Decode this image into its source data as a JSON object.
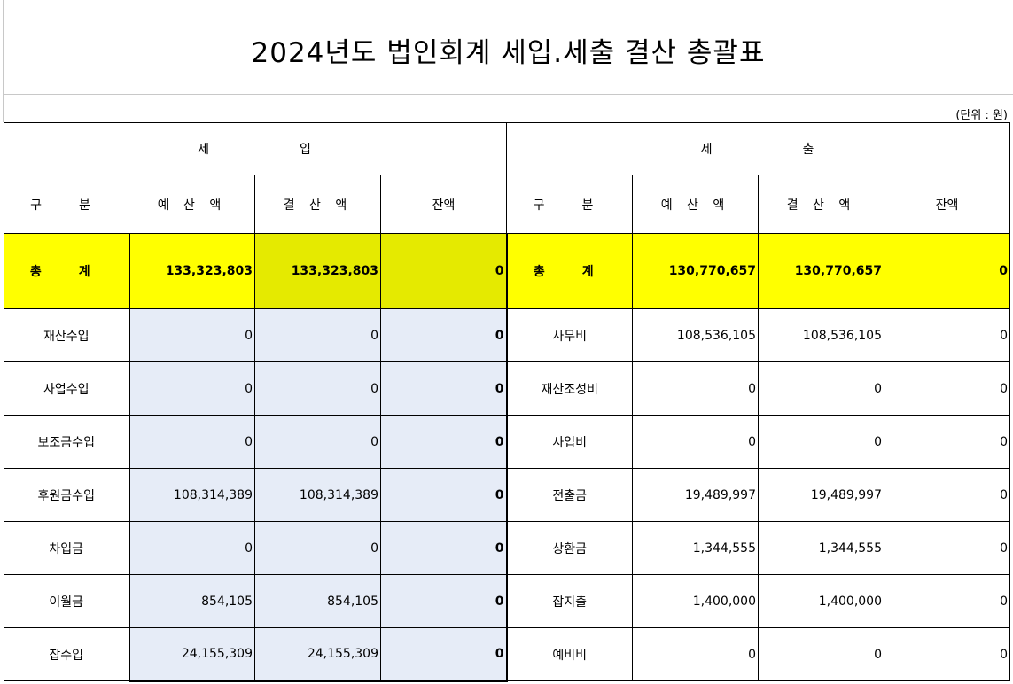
{
  "title": "2024년도 법인회계 세입.세출 결산 총괄표",
  "unit_note": "(단위 : 원)",
  "section_left_a": "세",
  "section_left_b": "입",
  "section_right_a": "세",
  "section_right_b": "출",
  "headers": {
    "category": "구　분",
    "budget": "예 산 액",
    "settled": "결 산 액",
    "balance": "잔액"
  },
  "total": {
    "label": "총　계",
    "rev_budget": "133,323,803",
    "rev_settled": "133,323,803",
    "rev_balance": "0",
    "exp_budget": "130,770,657",
    "exp_settled": "130,770,657",
    "exp_balance": "0"
  },
  "rows": [
    {
      "rev_name": "재산수입",
      "rev_budget": "0",
      "rev_settled": "0",
      "rev_balance": "0",
      "exp_name": "사무비",
      "exp_budget": "108,536,105",
      "exp_settled": "108,536,105",
      "exp_balance": "0"
    },
    {
      "rev_name": "사업수입",
      "rev_budget": "0",
      "rev_settled": "0",
      "rev_balance": "0",
      "exp_name": "재산조성비",
      "exp_budget": "0",
      "exp_settled": "0",
      "exp_balance": "0"
    },
    {
      "rev_name": "보조금수입",
      "rev_budget": "0",
      "rev_settled": "0",
      "rev_balance": "0",
      "exp_name": "사업비",
      "exp_budget": "0",
      "exp_settled": "0",
      "exp_balance": "0"
    },
    {
      "rev_name": "후원금수입",
      "rev_budget": "108,314,389",
      "rev_settled": "108,314,389",
      "rev_balance": "0",
      "exp_name": "전출금",
      "exp_budget": "19,489,997",
      "exp_settled": "19,489,997",
      "exp_balance": "0"
    },
    {
      "rev_name": "차입금",
      "rev_budget": "0",
      "rev_settled": "0",
      "rev_balance": "0",
      "exp_name": "상환금",
      "exp_budget": "1,344,555",
      "exp_settled": "1,344,555",
      "exp_balance": "0"
    },
    {
      "rev_name": "이월금",
      "rev_budget": "854,105",
      "rev_settled": "854,105",
      "rev_balance": "0",
      "exp_name": "잡지출",
      "exp_budget": "1,400,000",
      "exp_settled": "1,400,000",
      "exp_balance": "0"
    },
    {
      "rev_name": "잡수입",
      "rev_budget": "24,155,309",
      "rev_settled": "24,155,309",
      "rev_balance": "0",
      "exp_name": "예비비",
      "exp_budget": "0",
      "exp_settled": "0",
      "exp_balance": "0"
    }
  ],
  "colors": {
    "total_highlight": "#ffff00",
    "total_highlight_selected": "#e5ea00",
    "selection_fill": "#e6ecf7"
  }
}
